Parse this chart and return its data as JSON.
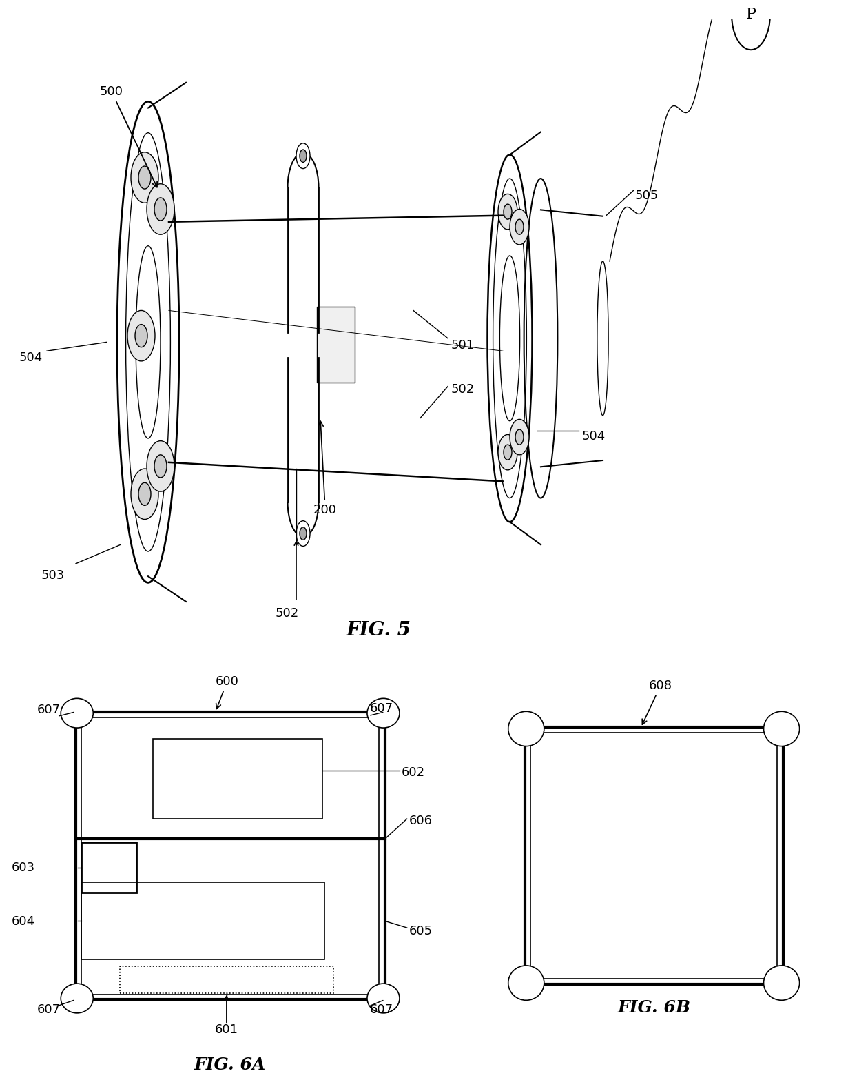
{
  "bg_color": "#ffffff",
  "line_color": "#000000",
  "fig5_label": "FIG. 5",
  "fig6a_label": "FIG. 6A",
  "fig6b_label": "FIG. 6B"
}
